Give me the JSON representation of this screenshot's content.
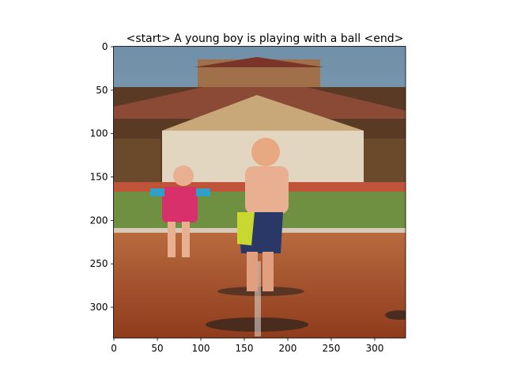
{
  "chart_data": {
    "type": "image",
    "title": "<start> A young boy is playing with a ball <end>",
    "xlim": [
      -0.5,
      335.5
    ],
    "ylim": [
      335.5,
      -0.5
    ],
    "xticks": [
      0,
      50,
      100,
      150,
      200,
      250,
      300
    ],
    "yticks": [
      0,
      50,
      100,
      150,
      200,
      250,
      300
    ]
  }
}
